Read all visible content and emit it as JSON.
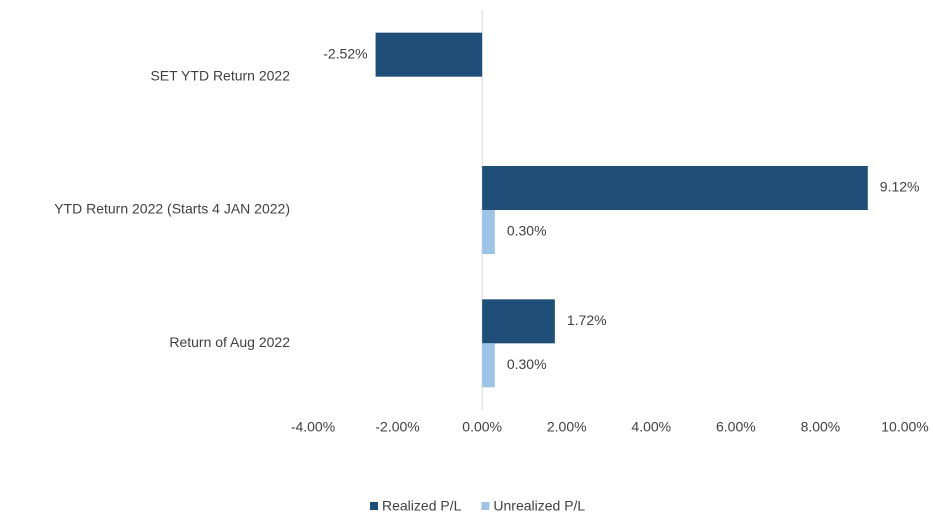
{
  "chart_data": {
    "type": "hbar",
    "categories": [
      "SET YTD Return 2022",
      "YTD Return 2022 (Starts 4 JAN 2022)",
      "Return of Aug 2022"
    ],
    "series": [
      {
        "name": "Realized P/L",
        "color": "#1f4e79",
        "values": [
          -2.52,
          9.12,
          1.72
        ],
        "value_labels": [
          "-2.52%",
          "9.12%",
          "1.72%"
        ]
      },
      {
        "name": "Unrealized P/L",
        "color": "#9dc3e6",
        "values": [
          null,
          0.3,
          0.3
        ],
        "value_labels": [
          null,
          "0.30%",
          "0.30%"
        ]
      }
    ],
    "xlim": [
      -4,
      10
    ],
    "xticks": [
      {
        "value": -4,
        "label": "-4.00%"
      },
      {
        "value": -2,
        "label": "-2.00%"
      },
      {
        "value": 0,
        "label": "0.00%"
      },
      {
        "value": 2,
        "label": "2.00%"
      },
      {
        "value": 4,
        "label": "4.00%"
      },
      {
        "value": 6,
        "label": "6.00%"
      },
      {
        "value": 8,
        "label": "8.00%"
      },
      {
        "value": 10,
        "label": "10.00%"
      }
    ],
    "legend": "bottom"
  }
}
